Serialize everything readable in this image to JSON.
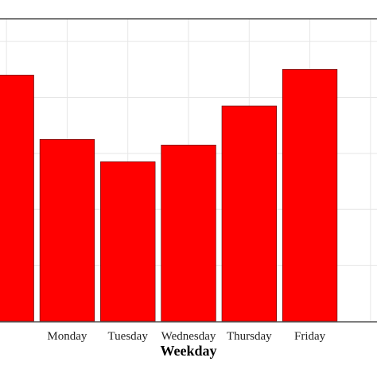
{
  "chart_data": {
    "type": "bar",
    "title": "",
    "xlabel": "Weekday",
    "ylabel": "",
    "categories": [
      "",
      "Monday",
      "Tuesday",
      "Wednesday",
      "Thursday",
      "Friday",
      ""
    ],
    "values": [
      0.88,
      0.65,
      0.57,
      0.63,
      0.77,
      0.9,
      0.0
    ],
    "ylim": [
      0,
      1.08
    ],
    "grid": true,
    "legend": "none",
    "bar_color": "#ff0000",
    "grid_color": "#e6e6e6",
    "frame_color": "#555555"
  }
}
